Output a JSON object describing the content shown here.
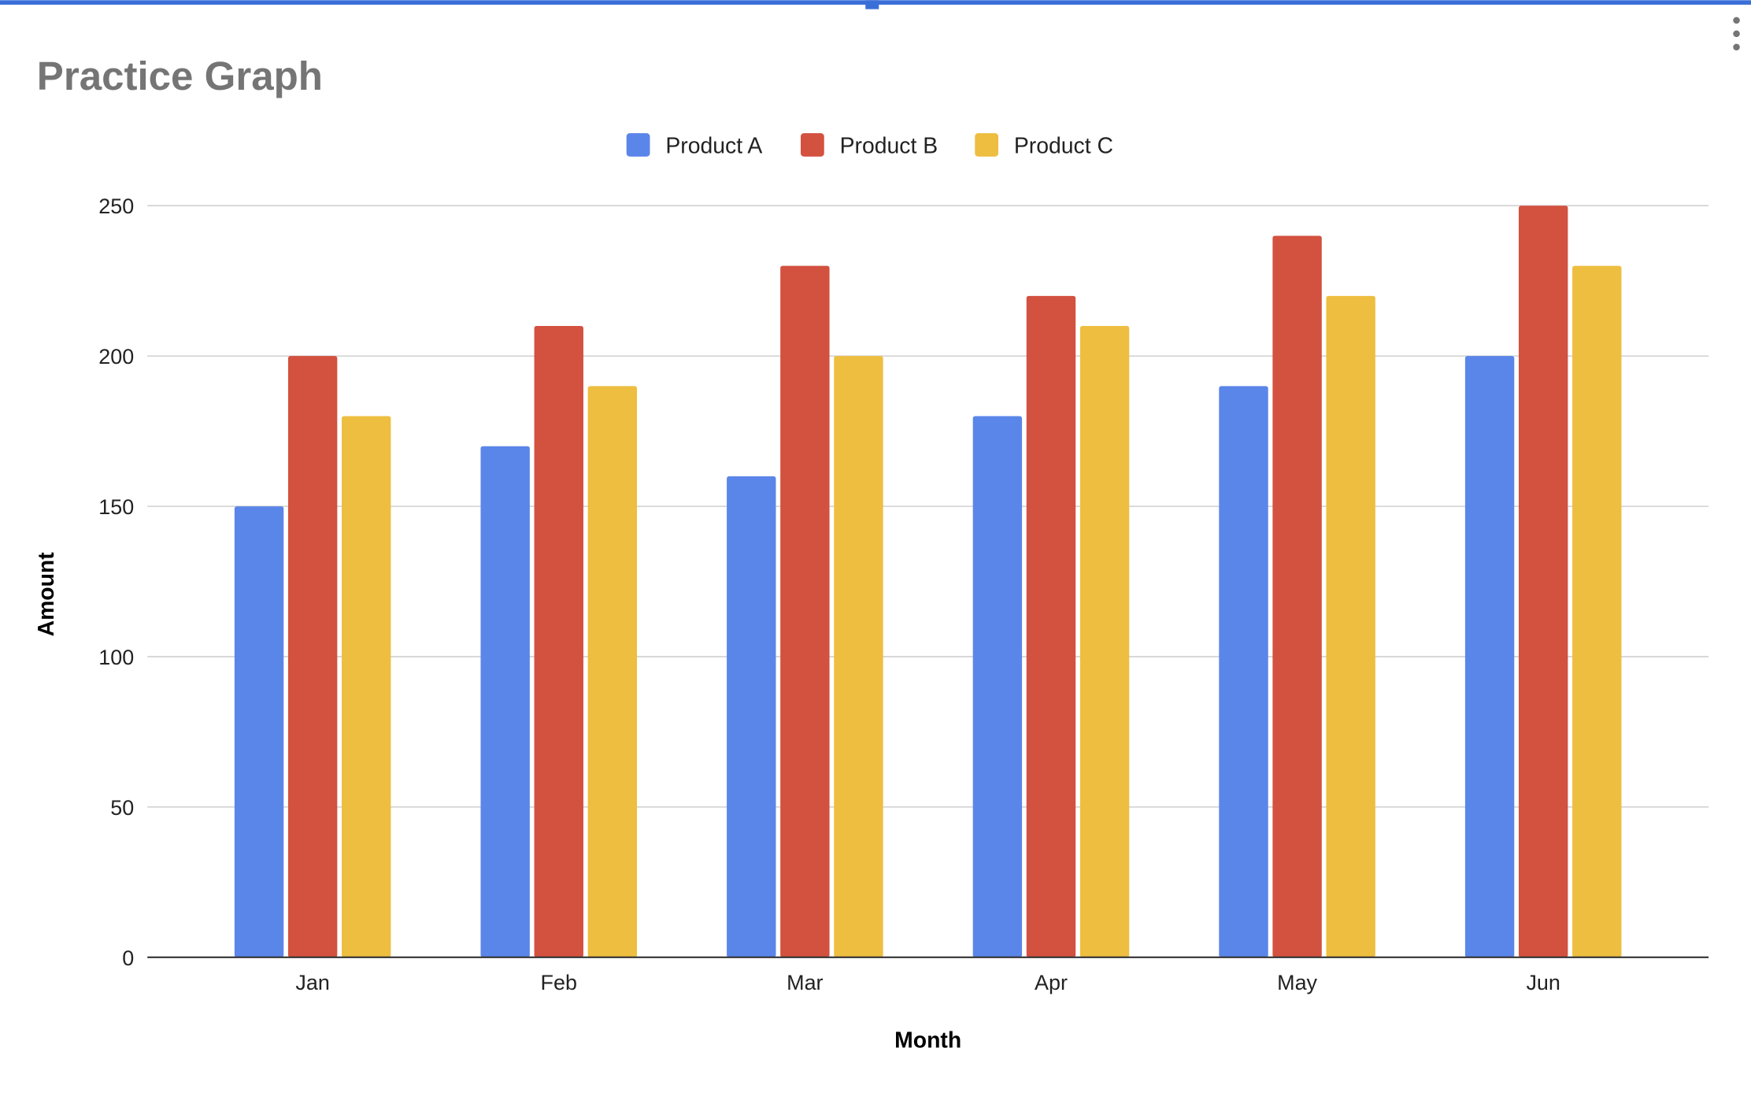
{
  "menu_icon": "more-vert-icon",
  "colors": {
    "selection_bar": "#3b6fd8",
    "grid": "#cccccc",
    "axis": "#333333",
    "title": "#757575"
  },
  "chart_data": {
    "type": "bar",
    "title": "Practice Graph",
    "xlabel": "Month",
    "ylabel": "Amount",
    "categories": [
      "Jan",
      "Feb",
      "Mar",
      "Apr",
      "May",
      "Jun"
    ],
    "series": [
      {
        "name": "Product A",
        "color": "#5b86e9",
        "values": [
          150,
          170,
          160,
          180,
          190,
          200
        ]
      },
      {
        "name": "Product B",
        "color": "#d3513f",
        "values": [
          200,
          210,
          230,
          220,
          240,
          250
        ]
      },
      {
        "name": "Product C",
        "color": "#eebe40",
        "values": [
          180,
          190,
          200,
          210,
          220,
          230
        ]
      }
    ],
    "ylim": [
      0,
      250
    ],
    "yticks": [
      "0",
      "50",
      "100",
      "150",
      "200",
      "250"
    ],
    "grid": true,
    "legend": "top"
  }
}
